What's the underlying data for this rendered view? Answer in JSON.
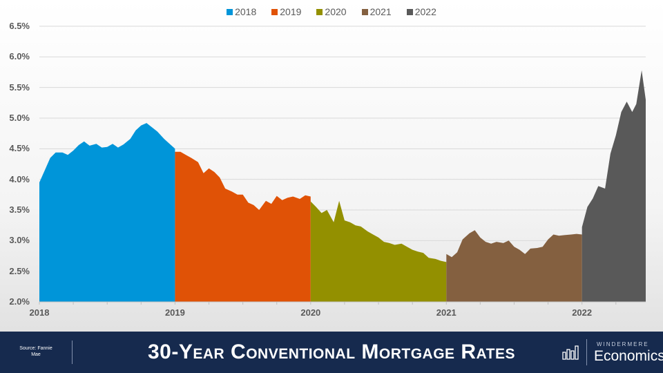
{
  "chart_data": {
    "type": "area",
    "title": "30-Year Conventional Mortgage Rates",
    "xlabel": "",
    "ylabel": "",
    "ylim": [
      2.0,
      6.5
    ],
    "yticks": [
      "2.0%",
      "2.5%",
      "3.0%",
      "3.5%",
      "4.0%",
      "4.5%",
      "5.0%",
      "5.5%",
      "6.0%",
      "6.5%"
    ],
    "xlim": [
      2018.0,
      2022.47
    ],
    "xticks": [
      "2018",
      "2019",
      "2020",
      "2021",
      "2022"
    ],
    "grid": "horizontal",
    "legend_position": "top-center",
    "series": [
      {
        "name": "2018",
        "color": "#0095d9",
        "x": [
          2018.0,
          2018.04,
          2018.08,
          2018.12,
          2018.17,
          2018.21,
          2018.25,
          2018.29,
          2018.33,
          2018.37,
          2018.42,
          2018.46,
          2018.5,
          2018.54,
          2018.58,
          2018.62,
          2018.67,
          2018.71,
          2018.75,
          2018.79,
          2018.83,
          2018.87,
          2018.92,
          2018.96,
          2019.0
        ],
        "y": [
          3.95,
          4.15,
          4.35,
          4.44,
          4.44,
          4.4,
          4.47,
          4.56,
          4.62,
          4.55,
          4.58,
          4.52,
          4.53,
          4.58,
          4.52,
          4.57,
          4.66,
          4.8,
          4.88,
          4.92,
          4.85,
          4.78,
          4.66,
          4.58,
          4.5
        ]
      },
      {
        "name": "2019",
        "color": "#e05206",
        "x": [
          2019.0,
          2019.04,
          2019.08,
          2019.12,
          2019.17,
          2019.21,
          2019.25,
          2019.29,
          2019.33,
          2019.37,
          2019.42,
          2019.46,
          2019.5,
          2019.54,
          2019.58,
          2019.62,
          2019.67,
          2019.71,
          2019.75,
          2019.79,
          2019.83,
          2019.87,
          2019.92,
          2019.96,
          2020.0
        ],
        "y": [
          4.45,
          4.45,
          4.4,
          4.35,
          4.28,
          4.1,
          4.18,
          4.12,
          4.03,
          3.85,
          3.8,
          3.75,
          3.75,
          3.62,
          3.58,
          3.5,
          3.65,
          3.6,
          3.73,
          3.66,
          3.7,
          3.72,
          3.68,
          3.74,
          3.72
        ]
      },
      {
        "name": "2020",
        "color": "#939000",
        "x": [
          2020.0,
          2020.04,
          2020.08,
          2020.12,
          2020.17,
          2020.21,
          2020.25,
          2020.29,
          2020.33,
          2020.37,
          2020.42,
          2020.46,
          2020.5,
          2020.54,
          2020.58,
          2020.62,
          2020.67,
          2020.71,
          2020.75,
          2020.79,
          2020.83,
          2020.87,
          2020.92,
          2020.96,
          2021.0
        ],
        "y": [
          3.64,
          3.55,
          3.45,
          3.5,
          3.3,
          3.65,
          3.33,
          3.3,
          3.25,
          3.23,
          3.15,
          3.1,
          3.05,
          2.98,
          2.96,
          2.93,
          2.95,
          2.9,
          2.85,
          2.82,
          2.8,
          2.72,
          2.7,
          2.67,
          2.65
        ]
      },
      {
        "name": "2021",
        "color": "#846040",
        "x": [
          2021.0,
          2021.04,
          2021.08,
          2021.12,
          2021.17,
          2021.21,
          2021.25,
          2021.29,
          2021.33,
          2021.37,
          2021.42,
          2021.46,
          2021.5,
          2021.54,
          2021.58,
          2021.62,
          2021.67,
          2021.71,
          2021.75,
          2021.79,
          2021.83,
          2021.87,
          2021.92,
          2021.96,
          2022.0
        ],
        "y": [
          2.78,
          2.73,
          2.81,
          3.02,
          3.12,
          3.17,
          3.05,
          2.98,
          2.95,
          2.98,
          2.96,
          3.0,
          2.9,
          2.85,
          2.78,
          2.87,
          2.88,
          2.9,
          3.02,
          3.1,
          3.08,
          3.09,
          3.1,
          3.11,
          3.1
        ]
      },
      {
        "name": "2022",
        "color": "#595959",
        "x": [
          2022.0,
          2022.04,
          2022.08,
          2022.12,
          2022.17,
          2022.21,
          2022.25,
          2022.29,
          2022.33,
          2022.37,
          2022.4,
          2022.44,
          2022.47
        ],
        "y": [
          3.22,
          3.55,
          3.69,
          3.89,
          3.85,
          4.42,
          4.72,
          5.1,
          5.27,
          5.1,
          5.23,
          5.78,
          5.3
        ]
      }
    ]
  },
  "footer": {
    "source": "Source: Fannie Mae",
    "title": "30-Year Conventional Mortgage Rates",
    "brand_top": "WINDERMERE",
    "brand_main": "Economics"
  }
}
